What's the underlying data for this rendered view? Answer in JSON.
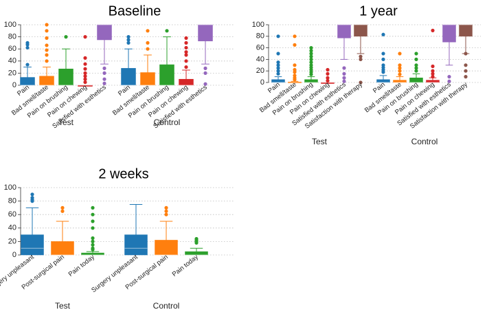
{
  "colors": {
    "blue": "#1f77b4",
    "orange": "#ff7f0e",
    "green": "#2ca02c",
    "red": "#d62728",
    "purple": "#9467bd",
    "brown": "#8c564b"
  },
  "chart_data": [
    {
      "type": "box",
      "title": "Baseline",
      "ylim": [
        0,
        100
      ],
      "yticks": [
        0,
        20,
        40,
        60,
        80,
        100
      ],
      "groups": [
        "Test",
        "Control"
      ],
      "categories": [
        "Pain",
        "Bad smell/taste",
        "Pain on brushing",
        "Pain on chewing",
        "Satisfied with esthetics"
      ],
      "category_colors": [
        "blue",
        "orange",
        "green",
        "red",
        "purple"
      ],
      "series": [
        {
          "group": "Test",
          "category": "Pain",
          "whisker_low": 0,
          "q1": 0,
          "median": 0,
          "q3": 13,
          "whisker_high": 30,
          "outliers": [
            34,
            62,
            67,
            70
          ]
        },
        {
          "group": "Test",
          "category": "Bad smell/taste",
          "whisker_low": 0,
          "q1": 0,
          "median": 0,
          "q3": 15,
          "whisker_high": 30,
          "outliers": [
            40,
            50,
            58,
            66,
            78,
            90,
            100
          ]
        },
        {
          "group": "Test",
          "category": "Pain on brushing",
          "whisker_low": 0,
          "q1": 0,
          "median": 0,
          "q3": 27,
          "whisker_high": 60,
          "outliers": [
            80
          ]
        },
        {
          "group": "Test",
          "category": "Pain on chewing",
          "whisker_low": 0,
          "q1": 0,
          "median": 0,
          "q3": 0,
          "whisker_high": 0,
          "outliers": [
            5,
            10,
            15,
            20,
            27,
            35,
            45,
            80
          ]
        },
        {
          "group": "Test",
          "category": "Satisfied with esthetics",
          "whisker_low": 35,
          "q1": 75,
          "median": 100,
          "q3": 100,
          "whisker_high": 100,
          "outliers": [
            3,
            10,
            20,
            28
          ]
        },
        {
          "group": "Control",
          "category": "Pain",
          "whisker_low": 0,
          "q1": 0,
          "median": 0,
          "q3": 28,
          "whisker_high": 60,
          "outliers": [
            70,
            75,
            80
          ]
        },
        {
          "group": "Control",
          "category": "Bad smell/taste",
          "whisker_low": 0,
          "q1": 0,
          "median": 0,
          "q3": 21,
          "whisker_high": 50,
          "outliers": [
            60,
            70,
            90
          ]
        },
        {
          "group": "Control",
          "category": "Pain on brushing",
          "whisker_low": 0,
          "q1": 0,
          "median": 0,
          "q3": 34,
          "whisker_high": 80,
          "outliers": [
            90
          ]
        },
        {
          "group": "Control",
          "category": "Pain on chewing",
          "whisker_low": 0,
          "q1": 0,
          "median": 0,
          "q3": 10,
          "whisker_high": 25,
          "outliers": [
            30,
            40,
            50,
            55,
            62,
            70,
            78
          ]
        },
        {
          "group": "Control",
          "category": "Satisfied with esthetics",
          "whisker_low": 35,
          "q1": 73,
          "median": 100,
          "q3": 100,
          "whisker_high": 100,
          "outliers": [
            2,
            20,
            28
          ]
        }
      ]
    },
    {
      "type": "box",
      "title": "1 year",
      "ylim": [
        0,
        100
      ],
      "yticks": [
        0,
        20,
        40,
        60,
        80,
        100
      ],
      "groups": [
        "Test",
        "Control"
      ],
      "categories": [
        "Pain",
        "Bad smell/taste",
        "Pain on brushing",
        "Pain on chewing",
        "Satisfied with esthetics",
        "Satisfaction with therapy"
      ],
      "category_colors": [
        "blue",
        "orange",
        "green",
        "red",
        "purple",
        "brown"
      ],
      "series": [
        {
          "group": "Test",
          "category": "Pain",
          "whisker_low": 0,
          "q1": 0,
          "median": 0,
          "q3": 5,
          "whisker_high": 10,
          "outliers": [
            15,
            20,
            25,
            30,
            35,
            50,
            80
          ]
        },
        {
          "group": "Test",
          "category": "Bad smell/taste",
          "whisker_low": 0,
          "q1": 0,
          "median": 0,
          "q3": 1,
          "whisker_high": 2,
          "outliers": [
            5,
            8,
            12,
            18,
            22,
            30,
            65,
            80
          ]
        },
        {
          "group": "Test",
          "category": "Pain on brushing",
          "whisker_low": 0,
          "q1": 0,
          "median": 0,
          "q3": 5,
          "whisker_high": 10,
          "outliers": [
            14,
            18,
            22,
            26,
            30,
            35,
            40,
            45,
            50,
            55,
            60
          ]
        },
        {
          "group": "Test",
          "category": "Pain on chewing",
          "whisker_low": 0,
          "q1": 0,
          "median": 0,
          "q3": 0,
          "whisker_high": 0,
          "outliers": [
            3,
            8,
            15,
            22
          ]
        },
        {
          "group": "Test",
          "category": "Satisfied with esthetics",
          "whisker_low": 40,
          "q1": 77,
          "median": 100,
          "q3": 100,
          "whisker_high": 100,
          "outliers": [
            2,
            8,
            15,
            25
          ]
        },
        {
          "group": "Test",
          "category": "Satisfaction with therapy",
          "whisker_low": 50,
          "q1": 80,
          "median": 100,
          "q3": 100,
          "whisker_high": 100,
          "outliers": [
            0,
            40,
            45
          ]
        },
        {
          "group": "Control",
          "category": "Pain",
          "whisker_low": 0,
          "q1": 0,
          "median": 0,
          "q3": 5,
          "whisker_high": 12,
          "outliers": [
            18,
            22,
            26,
            30,
            40,
            50,
            83
          ]
        },
        {
          "group": "Control",
          "category": "Bad smell/taste",
          "whisker_low": 0,
          "q1": 0,
          "median": 0,
          "q3": 4,
          "whisker_high": 10,
          "outliers": [
            14,
            20,
            25,
            30,
            50
          ]
        },
        {
          "group": "Control",
          "category": "Pain on brushing",
          "whisker_low": 0,
          "q1": 0,
          "median": 0,
          "q3": 8,
          "whisker_high": 15,
          "outliers": [
            20,
            25,
            30,
            40,
            50
          ]
        },
        {
          "group": "Control",
          "category": "Pain on chewing",
          "whisker_low": 0,
          "q1": 0,
          "median": 0,
          "q3": 4,
          "whisker_high": 8,
          "outliers": [
            10,
            15,
            20,
            28,
            90
          ]
        },
        {
          "group": "Control",
          "category": "Satisfied with esthetics",
          "whisker_low": 30,
          "q1": 70,
          "median": 100,
          "q3": 100,
          "whisker_high": 100,
          "outliers": [
            2,
            10
          ]
        },
        {
          "group": "Control",
          "category": "Satisfaction with therapy",
          "whisker_low": 50,
          "q1": 80,
          "median": 100,
          "q3": 100,
          "whisker_high": 100,
          "outliers": [
            10,
            20,
            30,
            50
          ]
        }
      ]
    },
    {
      "type": "box",
      "title": "2 weeks",
      "ylim": [
        0,
        100
      ],
      "yticks": [
        0,
        20,
        40,
        60,
        80,
        100
      ],
      "groups": [
        "Test",
        "Control"
      ],
      "categories": [
        "Surgery unpleasant",
        "Post-surgical pain",
        "Pain today"
      ],
      "category_colors": [
        "blue",
        "orange",
        "green"
      ],
      "series": [
        {
          "group": "Test",
          "category": "Surgery unpleasant",
          "whisker_low": 0,
          "q1": 0,
          "median": 10,
          "q3": 30,
          "whisker_high": 70,
          "outliers": [
            80,
            82,
            85,
            90
          ]
        },
        {
          "group": "Test",
          "category": "Post-surgical pain",
          "whisker_low": 0,
          "q1": 0,
          "median": 0,
          "q3": 20,
          "whisker_high": 50,
          "outliers": [
            65,
            70
          ]
        },
        {
          "group": "Test",
          "category": "Pain today",
          "whisker_low": 0,
          "q1": 0,
          "median": 0,
          "q3": 3,
          "whisker_high": 5,
          "outliers": [
            8,
            10,
            15,
            20,
            25,
            40,
            50,
            60,
            70
          ]
        },
        {
          "group": "Control",
          "category": "Surgery unpleasant",
          "whisker_low": 0,
          "q1": 0,
          "median": 10,
          "q3": 30,
          "whisker_high": 75,
          "outliers": []
        },
        {
          "group": "Control",
          "category": "Post-surgical pain",
          "whisker_low": 0,
          "q1": 0,
          "median": 0,
          "q3": 22,
          "whisker_high": 50,
          "outliers": [
            60,
            65,
            70
          ]
        },
        {
          "group": "Control",
          "category": "Pain today",
          "whisker_low": 0,
          "q1": 0,
          "median": 0,
          "q3": 5,
          "whisker_high": 10,
          "outliers": [
            18,
            20,
            22,
            24
          ]
        }
      ]
    }
  ]
}
